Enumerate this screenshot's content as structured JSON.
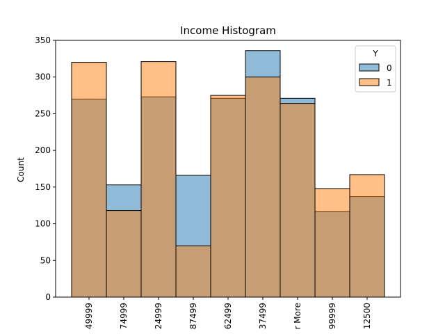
{
  "chart_data": {
    "type": "bar",
    "title": "Income Histogram",
    "xlabel": "",
    "ylabel": "Count",
    "ylim": [
      0,
      350
    ],
    "yticks": [
      0,
      50,
      100,
      150,
      200,
      250,
      300,
      350
    ],
    "categories": [
      "49999",
      "74999",
      "24999",
      "87499",
      "62499",
      "37499",
      "r More",
      "99999",
      "12500"
    ],
    "series": [
      {
        "name": "0",
        "color": "#1f77b4",
        "values": [
          270,
          153,
          273,
          166,
          271,
          336,
          271,
          117,
          137
        ]
      },
      {
        "name": "1",
        "color": "#ff7f0e",
        "values": [
          320,
          118,
          321,
          70,
          275,
          300,
          264,
          148,
          167
        ]
      }
    ],
    "legend": {
      "title": "Y",
      "placement": "top-right",
      "labels": [
        "0",
        "1"
      ]
    },
    "grid": false
  }
}
